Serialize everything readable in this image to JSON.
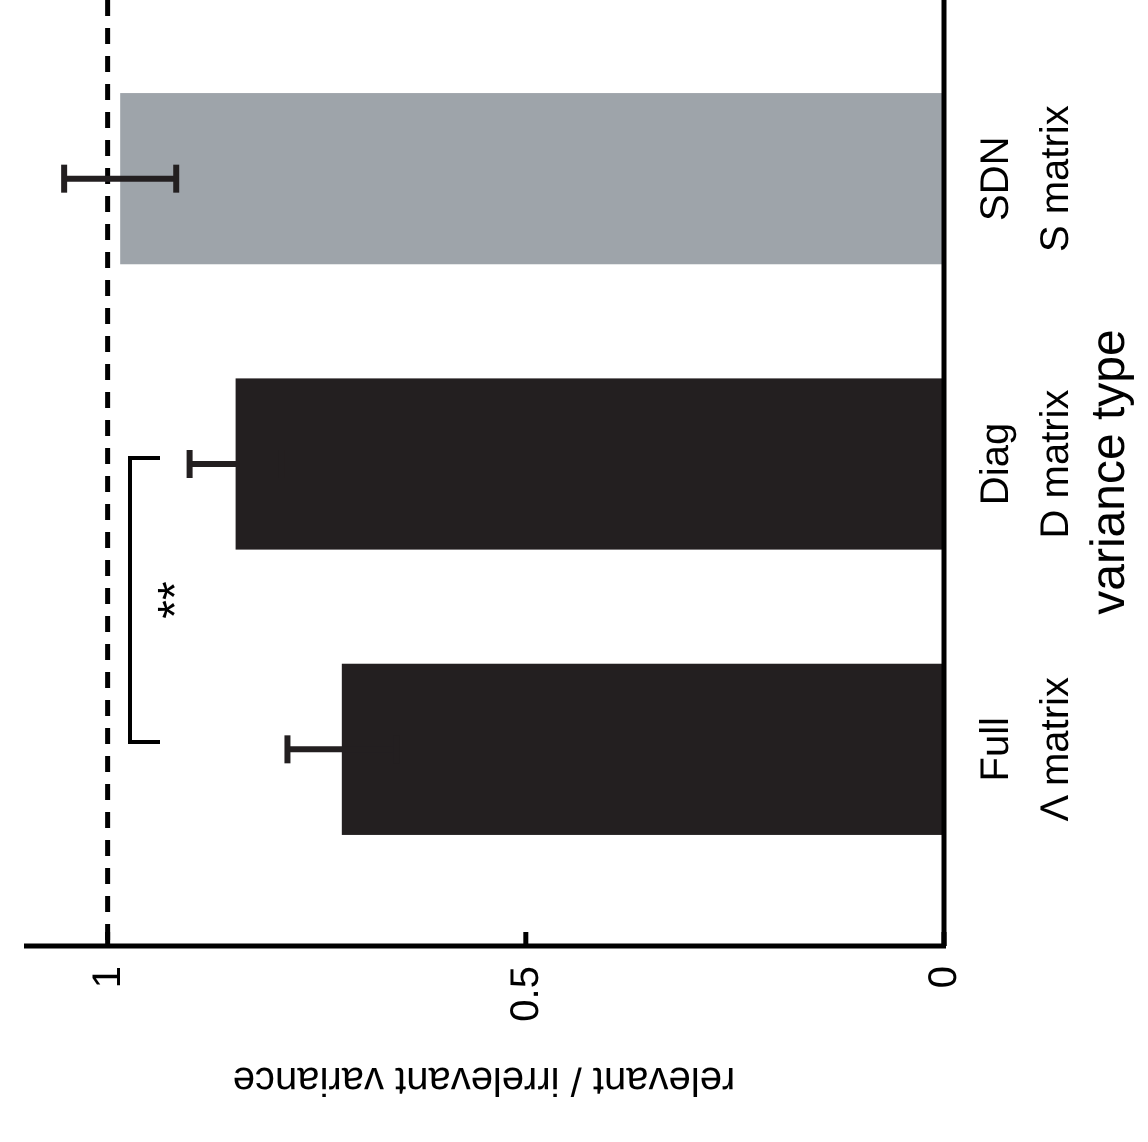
{
  "chart_data": {
    "type": "bar",
    "orientation": "horizontal",
    "xlabel": "relevant / irrelevant variance",
    "ylabel": "variance type",
    "categories": [
      "SDN\nS matrix",
      "Diag\nD matrix",
      "Full\nΛ matrix"
    ],
    "values": [
      0.985,
      0.847,
      0.72
    ],
    "colors": [
      "#9ea4aa",
      "#231f20",
      "#231f20"
    ],
    "errors": [
      0.067,
      0.055,
      0.065
    ],
    "xlim": [
      1.1,
      0
    ],
    "xticks": [
      1,
      0.5,
      0
    ],
    "ref_lines": [
      {
        "axis": "x",
        "value": 1,
        "line_style": "dashed",
        "color": "#000000"
      }
    ],
    "annotations": [
      "**"
    ],
    "grid": false
  }
}
